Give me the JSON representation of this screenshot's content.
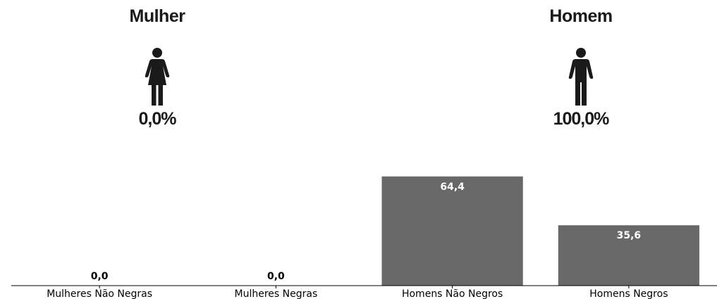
{
  "gender_panels": {
    "female": {
      "title": "Mulher",
      "percent": "0,0%",
      "icon": "female-person-icon"
    },
    "male": {
      "title": "Homem",
      "percent": "100,0%",
      "icon": "male-person-icon"
    }
  },
  "colors": {
    "bar": "#686868",
    "text": "#1a1a1a",
    "axis": "#000000",
    "bar_label_inside": "#ffffff"
  },
  "chart_data": {
    "type": "bar",
    "categories": [
      "Mulheres Não Negras",
      "Mulheres Negras",
      "Homens Não Negros",
      "Homens Negros"
    ],
    "values": [
      0.0,
      0.0,
      64.4,
      35.6
    ],
    "value_labels": [
      "0,0",
      "0,0",
      "64,4",
      "35,6"
    ],
    "title": "",
    "xlabel": "",
    "ylabel": "",
    "ylim": [
      0,
      100
    ],
    "grid": false,
    "legend": "none"
  }
}
